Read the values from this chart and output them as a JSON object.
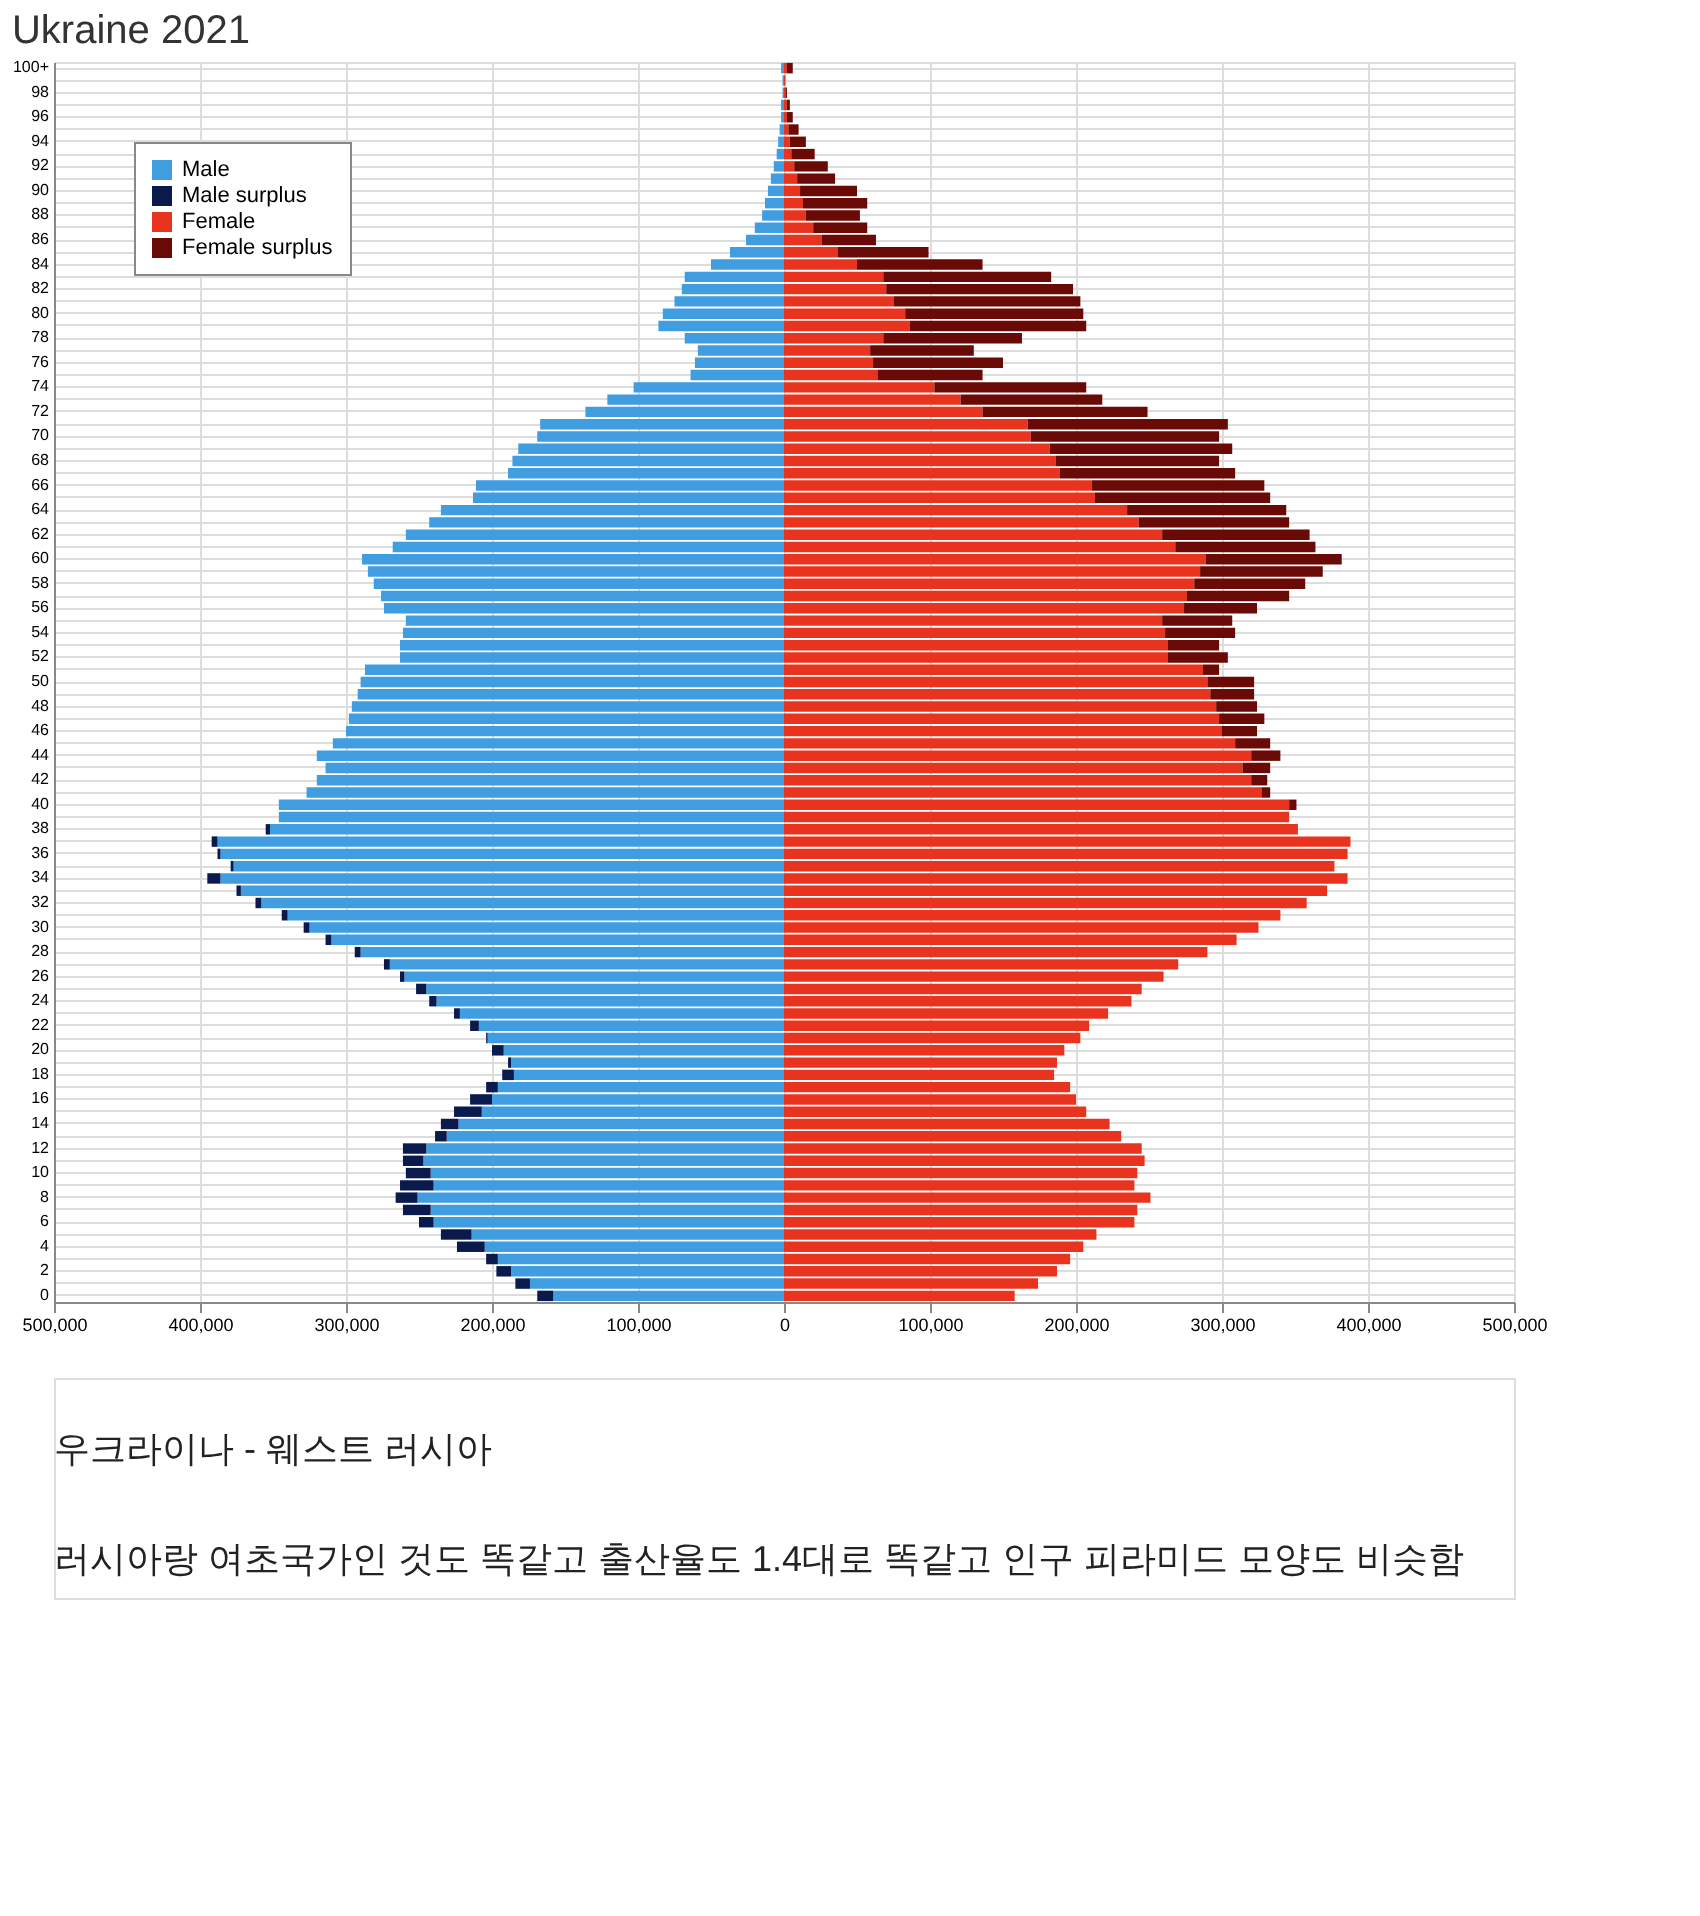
{
  "chart_data": {
    "type": "bar",
    "orientation": "horizontal",
    "stacked": true,
    "title": "Ukraine 2021",
    "categories": [
      "100+",
      null,
      "98",
      null,
      "96",
      null,
      "94",
      null,
      "92",
      null,
      "90",
      null,
      "88",
      null,
      "86",
      null,
      "84",
      null,
      "82",
      null,
      "80",
      null,
      "78",
      null,
      "76",
      null,
      "74",
      null,
      "72",
      null,
      "70",
      null,
      "68",
      null,
      "66",
      null,
      "64",
      null,
      "62",
      null,
      "60",
      null,
      "58",
      null,
      "56",
      null,
      "54",
      null,
      "52",
      null,
      "50",
      null,
      "48",
      null,
      "46",
      null,
      "44",
      null,
      "42",
      null,
      "40",
      null,
      "38",
      null,
      "36",
      null,
      "34",
      null,
      "32",
      null,
      "30",
      null,
      "28",
      null,
      "26",
      null,
      "24",
      null,
      "22",
      null,
      "20",
      null,
      "18",
      null,
      "16",
      null,
      "14",
      null,
      "12",
      null,
      "10",
      null,
      "8",
      null,
      "6",
      null,
      "4",
      null,
      "2",
      null,
      "0"
    ],
    "series": [
      {
        "name": "Male",
        "color": "#3f9de0",
        "values": [
          -2000,
          -1000,
          -1000,
          -2000,
          -2000,
          -3000,
          -4000,
          -5000,
          -7000,
          -9000,
          -11000,
          -13000,
          -15000,
          -20000,
          -26000,
          -37000,
          -50000,
          -68000,
          -70000,
          -75000,
          -83000,
          -86000,
          -68000,
          -59000,
          -61000,
          -64000,
          -103000,
          -121000,
          -136000,
          -167000,
          -169000,
          -182000,
          -186000,
          -189000,
          -211000,
          -213000,
          -235000,
          -243000,
          -259000,
          -268000,
          -289000,
          -285000,
          -281000,
          -276000,
          -274000,
          -259000,
          -261000,
          -263000,
          -263000,
          -287000,
          -290000,
          -292000,
          -296000,
          -298000,
          -300000,
          -309000,
          -320000,
          -314000,
          -320000,
          -327000,
          -346000,
          -346000,
          -352000,
          -388000,
          -386000,
          -377000,
          -386000,
          -372000,
          -358000,
          -340000,
          -325000,
          -310000,
          -290000,
          -270000,
          -260000,
          -245000,
          -238000,
          -222000,
          -209000,
          -203000,
          -192000,
          -187000,
          -185000,
          -196000,
          -200000,
          -207000,
          -223000,
          -231000,
          -245000,
          -247000,
          -242000,
          -240000,
          -251000,
          -242000,
          -240000,
          -214000,
          -205000,
          -196000,
          -187000,
          -174000,
          -158000
        ]
      },
      {
        "name": "Male surplus",
        "color": "#0b1a4d",
        "values": [
          null,
          null,
          null,
          null,
          null,
          null,
          null,
          null,
          null,
          null,
          null,
          null,
          null,
          null,
          null,
          null,
          null,
          null,
          null,
          null,
          null,
          null,
          null,
          null,
          null,
          null,
          null,
          null,
          null,
          null,
          null,
          null,
          null,
          null,
          null,
          null,
          null,
          null,
          null,
          null,
          null,
          null,
          null,
          null,
          null,
          null,
          null,
          null,
          null,
          null,
          null,
          null,
          null,
          null,
          null,
          null,
          null,
          null,
          null,
          null,
          null,
          null,
          -3000,
          -4000,
          -2000,
          -2000,
          -9000,
          -3000,
          -4000,
          -4000,
          -4000,
          -4000,
          -4000,
          -4000,
          -3000,
          -7000,
          -5000,
          -4000,
          -6000,
          -1000,
          -8000,
          -2000,
          -8000,
          -8000,
          -15000,
          -19000,
          -12000,
          -8000,
          -16000,
          -14000,
          -17000,
          -23000,
          -15000,
          -19000,
          -10000,
          -21000,
          -19000,
          -8000,
          -10000,
          -10000,
          -11000
        ]
      },
      {
        "name": "Female",
        "color": "#e8341f",
        "values": [
          2000,
          1000,
          1000,
          2000,
          2000,
          3000,
          4000,
          5000,
          7000,
          9000,
          11000,
          13000,
          15000,
          20000,
          26000,
          37000,
          50000,
          68000,
          70000,
          75000,
          83000,
          86000,
          68000,
          59000,
          61000,
          64000,
          103000,
          121000,
          136000,
          167000,
          169000,
          182000,
          186000,
          189000,
          211000,
          213000,
          235000,
          243000,
          259000,
          268000,
          289000,
          285000,
          281000,
          276000,
          274000,
          259000,
          261000,
          263000,
          263000,
          287000,
          290000,
          292000,
          296000,
          298000,
          300000,
          309000,
          320000,
          314000,
          320000,
          327000,
          346000,
          346000,
          352000,
          388000,
          386000,
          377000,
          386000,
          372000,
          358000,
          340000,
          325000,
          310000,
          290000,
          270000,
          260000,
          245000,
          238000,
          222000,
          209000,
          203000,
          192000,
          187000,
          185000,
          196000,
          200000,
          207000,
          223000,
          231000,
          245000,
          247000,
          242000,
          240000,
          251000,
          242000,
          240000,
          214000,
          205000,
          196000,
          187000,
          174000,
          158000
        ]
      },
      {
        "name": "Female surplus",
        "color": "#6a0a06",
        "values": [
          4000,
          null,
          1000,
          2000,
          4000,
          7000,
          11000,
          16000,
          23000,
          26000,
          39000,
          44000,
          37000,
          37000,
          37000,
          62000,
          86000,
          115000,
          128000,
          128000,
          122000,
          121000,
          95000,
          71000,
          89000,
          72000,
          104000,
          97000,
          113000,
          137000,
          129000,
          125000,
          112000,
          120000,
          118000,
          120000,
          109000,
          103000,
          101000,
          96000,
          93000,
          84000,
          76000,
          70000,
          50000,
          48000,
          48000,
          35000,
          41000,
          11000,
          32000,
          30000,
          28000,
          31000,
          24000,
          24000,
          20000,
          19000,
          11000,
          6000,
          5000,
          null,
          null,
          null,
          null,
          null,
          null,
          null,
          null,
          null,
          null,
          null,
          null,
          null,
          null,
          null,
          null,
          null,
          null,
          null,
          null,
          null,
          null,
          null,
          null,
          null,
          null,
          null,
          null,
          null,
          null,
          null,
          null,
          null,
          null,
          null,
          null,
          null,
          null,
          null,
          null
        ]
      }
    ],
    "xlim": [
      -500000,
      500000
    ],
    "xticks": [
      {
        "value": -500000,
        "label": "500,000"
      },
      {
        "value": -400000,
        "label": "400,000"
      },
      {
        "value": -300000,
        "label": "300,000"
      },
      {
        "value": -200000,
        "label": "200,000"
      },
      {
        "value": -100000,
        "label": "100,000"
      },
      0,
      {
        "value": 100000,
        "label": "100,000"
      },
      {
        "value": 200000,
        "label": "200,000"
      },
      {
        "value": 300000,
        "label": "300,000"
      },
      {
        "value": 400000,
        "label": "400,000"
      },
      {
        "value": 500000,
        "label": "500,000"
      }
    ],
    "grid": true,
    "legend": "top left",
    "annotations": [
      "우크라이나 - 웨스트 러시아",
      "러시아랑 여초국가인 것도 똑같고 출산율도 1.4대로 똑같고 인구 피라미드 모양도 비슷함"
    ]
  }
}
